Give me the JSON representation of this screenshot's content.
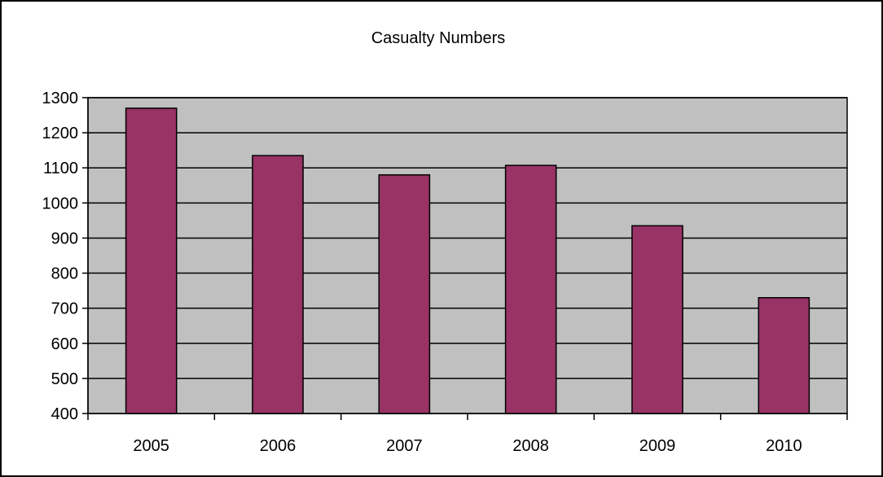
{
  "chart_data": {
    "type": "bar",
    "title": "Casualty Numbers",
    "xlabel": "",
    "ylabel": "",
    "categories": [
      "2005",
      "2006",
      "2007",
      "2008",
      "2009",
      "2010"
    ],
    "values": [
      1270,
      1135,
      1080,
      1107,
      935,
      730
    ],
    "ylim": [
      400,
      1300
    ],
    "y_ticks": [
      400,
      500,
      600,
      700,
      800,
      900,
      1000,
      1100,
      1200,
      1300
    ],
    "y_tick_labels": [
      "400",
      "500",
      "600",
      "700",
      "800",
      "900",
      "1000",
      "1100",
      "1200",
      "1300"
    ],
    "grid": true,
    "legend": "none",
    "colors": {
      "bar": "#993366",
      "plot_background": "#c0c0c0",
      "frame": "#000000"
    }
  }
}
